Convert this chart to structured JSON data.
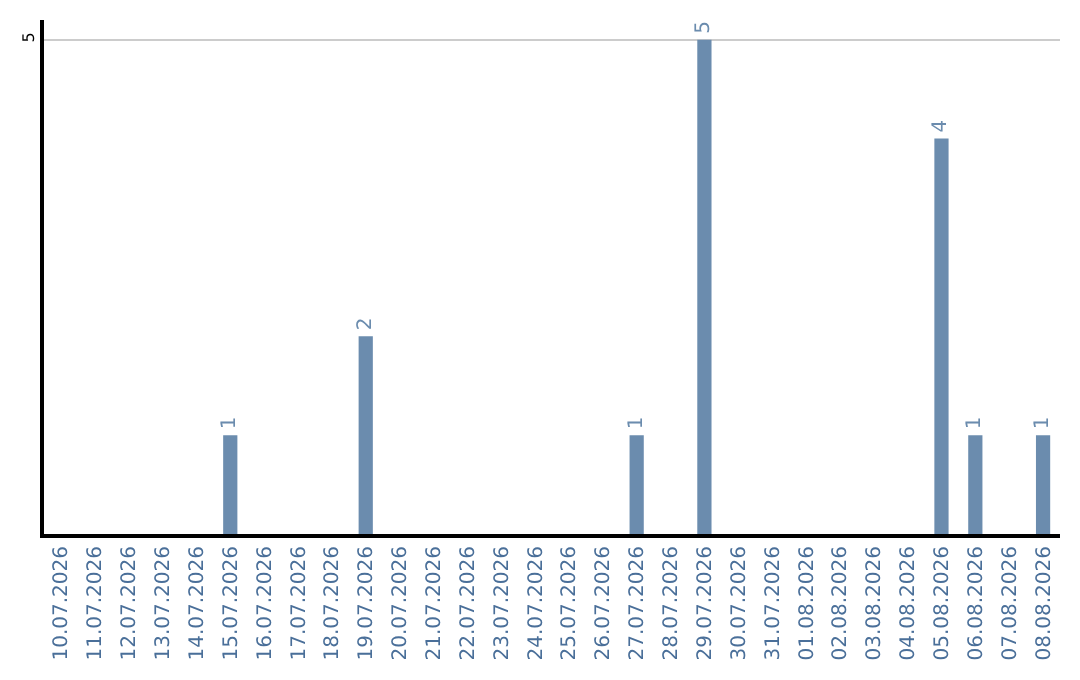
{
  "chart_data": {
    "type": "bar",
    "categories": [
      "10.07.2026",
      "11.07.2026",
      "12.07.2026",
      "13.07.2026",
      "14.07.2026",
      "15.07.2026",
      "16.07.2026",
      "17.07.2026",
      "18.07.2026",
      "19.07.2026",
      "20.07.2026",
      "21.07.2026",
      "22.07.2026",
      "23.07.2026",
      "24.07.2026",
      "25.07.2026",
      "26.07.2026",
      "27.07.2026",
      "28.07.2026",
      "29.07.2026",
      "30.07.2026",
      "31.07.2026",
      "01.08.2026",
      "02.08.2026",
      "03.08.2026",
      "04.08.2026",
      "05.08.2026",
      "06.08.2026",
      "07.08.2026",
      "08.08.2026"
    ],
    "values": [
      0,
      0,
      0,
      0,
      0,
      1,
      0,
      0,
      0,
      2,
      0,
      0,
      0,
      0,
      0,
      0,
      0,
      1,
      0,
      5,
      0,
      0,
      0,
      0,
      0,
      0,
      4,
      1,
      0,
      1
    ],
    "value_labels": [
      null,
      null,
      null,
      null,
      null,
      "1",
      null,
      null,
      null,
      "2",
      null,
      null,
      null,
      null,
      null,
      null,
      null,
      "1",
      null,
      "5",
      null,
      null,
      null,
      null,
      null,
      null,
      "4",
      "1",
      null,
      "1"
    ],
    "color": "#6b8cae",
    "ylim": [
      0,
      5.2
    ],
    "yticks": [
      5
    ],
    "grid": "y"
  }
}
